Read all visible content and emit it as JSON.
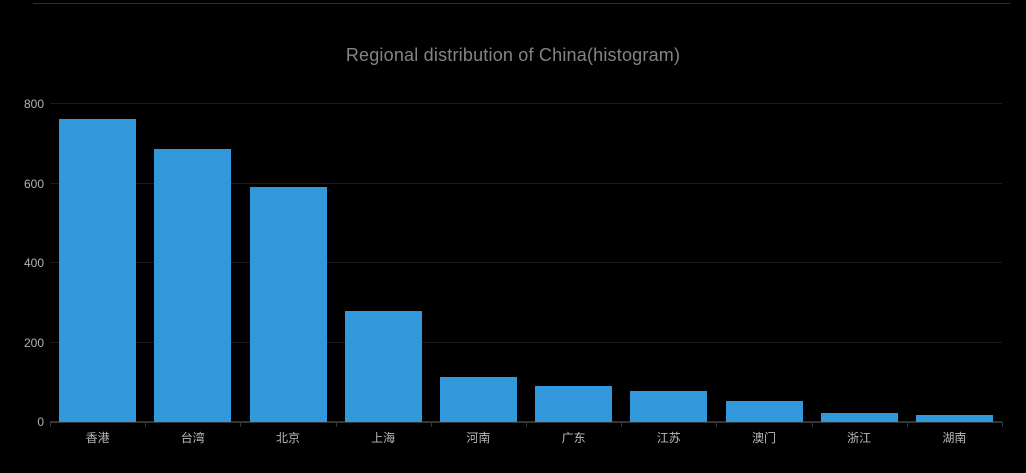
{
  "title": "Regional distribution of China(histogram)",
  "colors": {
    "background": "#000000",
    "bar": "#3398db",
    "title_text": "#848484",
    "axis_label": "#b3b3b3",
    "axis_line": "#343434",
    "gridline": "#1c1c1c",
    "top_border": "#2e2e2e"
  },
  "chart_data": {
    "type": "bar",
    "title": "Regional distribution of China(histogram)",
    "categories": [
      "香港",
      "台湾",
      "北京",
      "上海",
      "河南",
      "广东",
      "江苏",
      "澳门",
      "浙江",
      "湖南"
    ],
    "values": [
      762,
      688,
      590,
      279,
      113,
      91,
      78,
      54,
      23,
      17
    ],
    "xlabel": "",
    "ylabel": "",
    "ylim": [
      0,
      800
    ],
    "yticks": [
      0,
      200,
      400,
      600,
      800
    ],
    "grid": true,
    "legend_position": "none",
    "title_position": "top-center"
  }
}
